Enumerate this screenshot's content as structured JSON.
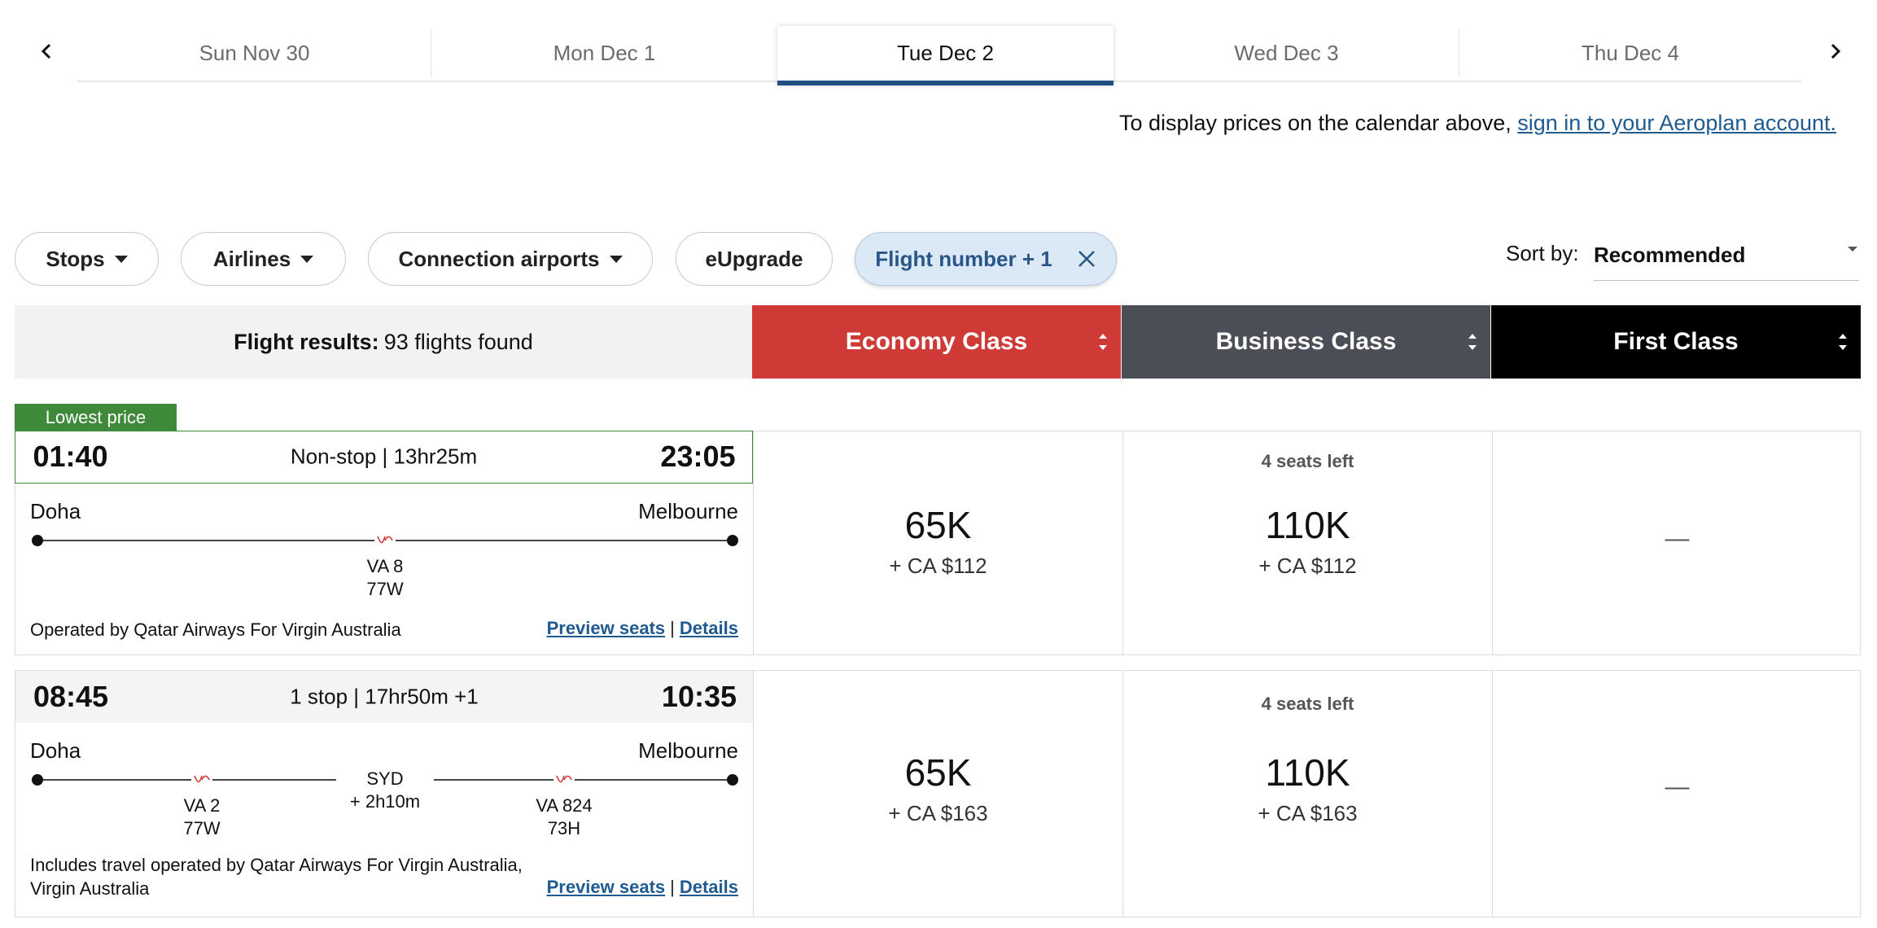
{
  "dates": {
    "tabs": [
      {
        "label": "Sun Nov 30"
      },
      {
        "label": "Mon Dec 1"
      },
      {
        "label": "Tue Dec 2"
      },
      {
        "label": "Wed Dec 3"
      },
      {
        "label": "Thu Dec 4"
      }
    ],
    "selected": "Tue Dec 2",
    "signin_prefix": "To display prices on the calendar above, ",
    "signin_link": "sign in to your Aeroplan account."
  },
  "filters": {
    "stops": "Stops",
    "airlines": "Airlines",
    "connection_airports": "Connection airports",
    "eupgrade": "eUpgrade",
    "flight_number": "Flight number + 1"
  },
  "sort": {
    "label": "Sort by:",
    "value": "Recommended"
  },
  "results": {
    "label": "Flight results:",
    "count": "93 flights found"
  },
  "cabins": {
    "economy": "Economy Class",
    "business": "Business Class",
    "first": "First Class"
  },
  "colors": {
    "economy": "#cf3a36",
    "business": "#4b4e57",
    "first": "#000000",
    "lowest_badge": "#3f8a3a",
    "link": "#1f5a91",
    "active_tab_underline": "#1f4f80"
  },
  "flights": [
    {
      "badge": "Lowest price",
      "depart": "01:40",
      "summary": "Non-stop | 13hr25m",
      "arrive": "23:05",
      "origin": "Doha",
      "destination": "Melbourne",
      "segments": [
        {
          "flight": "VA 8",
          "aircraft": "77W"
        }
      ],
      "operated": "Operated by Qatar Airways For Virgin Australia",
      "preview_seats": "Preview seats",
      "details": "Details",
      "separator": "|",
      "economy": {
        "points": "65K",
        "cash": "+ CA $112"
      },
      "business": {
        "seats_left": "4 seats left",
        "points": "110K",
        "cash": "+ CA $112"
      },
      "first": {
        "value": "—"
      }
    },
    {
      "depart": "08:45",
      "summary": "1 stop | 17hr50m +1",
      "arrive": "10:35",
      "origin": "Doha",
      "destination": "Melbourne",
      "segments": [
        {
          "flight": "VA 2",
          "aircraft": "77W"
        },
        {
          "flight": "VA 824",
          "aircraft": "73H"
        }
      ],
      "connection": {
        "airport": "SYD",
        "layover": "+ 2h10m"
      },
      "operated": "Includes travel operated by Qatar Airways For Virgin Australia, Virgin Australia",
      "preview_seats": "Preview seats",
      "details": "Details",
      "separator": "|",
      "economy": {
        "points": "65K",
        "cash": "+ CA $163"
      },
      "business": {
        "seats_left": "4 seats left",
        "points": "110K",
        "cash": "+ CA $163"
      },
      "first": {
        "value": "—"
      }
    }
  ]
}
